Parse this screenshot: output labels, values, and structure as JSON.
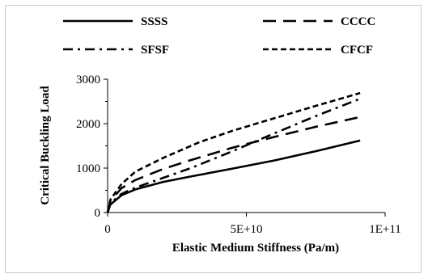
{
  "chart_data": {
    "type": "line",
    "title": "",
    "xlabel": "Elastic Medium Stiffness (Pa/m)",
    "ylabel": "Critical Buckling Load",
    "xlim": [
      0,
      100000000000
    ],
    "ylim": [
      0,
      3000
    ],
    "x_ticks": [
      {
        "value": 0,
        "label": "0"
      },
      {
        "value": 50000000000,
        "label": "5E+10"
      },
      {
        "value": 100000000000,
        "label": "1E+11"
      }
    ],
    "y_ticks": [
      {
        "value": 0,
        "label": "0"
      },
      {
        "value": 1000,
        "label": "1000"
      },
      {
        "value": 2000,
        "label": "2000"
      },
      {
        "value": 3000,
        "label": "3000"
      }
    ],
    "grid": false,
    "legend_position": "top",
    "series": [
      {
        "name": "SSSS",
        "style": "solid",
        "x": [
          0,
          1000000000,
          5000000000,
          10000000000,
          20000000000,
          30000000000,
          45000000000,
          60000000000,
          75000000000,
          91000000000
        ],
        "y": [
          0,
          180,
          390,
          520,
          690,
          810,
          990,
          1170,
          1380,
          1620
        ]
      },
      {
        "name": "CCCC",
        "style": "long-dash",
        "x": [
          0,
          1000000000,
          5000000000,
          10000000000,
          20000000000,
          30000000000,
          45000000000,
          60000000000,
          75000000000,
          91000000000
        ],
        "y": [
          0,
          260,
          550,
          730,
          980,
          1180,
          1460,
          1700,
          1930,
          2150
        ]
      },
      {
        "name": "SFSF",
        "style": "dash-dot",
        "x": [
          0,
          1000000000,
          5000000000,
          10000000000,
          20000000000,
          30000000000,
          45000000000,
          60000000000,
          75000000000,
          91000000000
        ],
        "y": [
          0,
          210,
          420,
          560,
          780,
          1000,
          1380,
          1780,
          2170,
          2560
        ]
      },
      {
        "name": "CFCF",
        "style": "short-dash",
        "x": [
          0,
          1000000000,
          5000000000,
          10000000000,
          20000000000,
          33000000000,
          45000000000,
          60000000000,
          75000000000,
          91000000000
        ],
        "y": [
          0,
          290,
          640,
          920,
          1230,
          1580,
          1840,
          2120,
          2400,
          2690
        ]
      }
    ],
    "colors": {
      "lines": "#000000",
      "axes": "#000000",
      "border": "#c8c8c8"
    }
  }
}
